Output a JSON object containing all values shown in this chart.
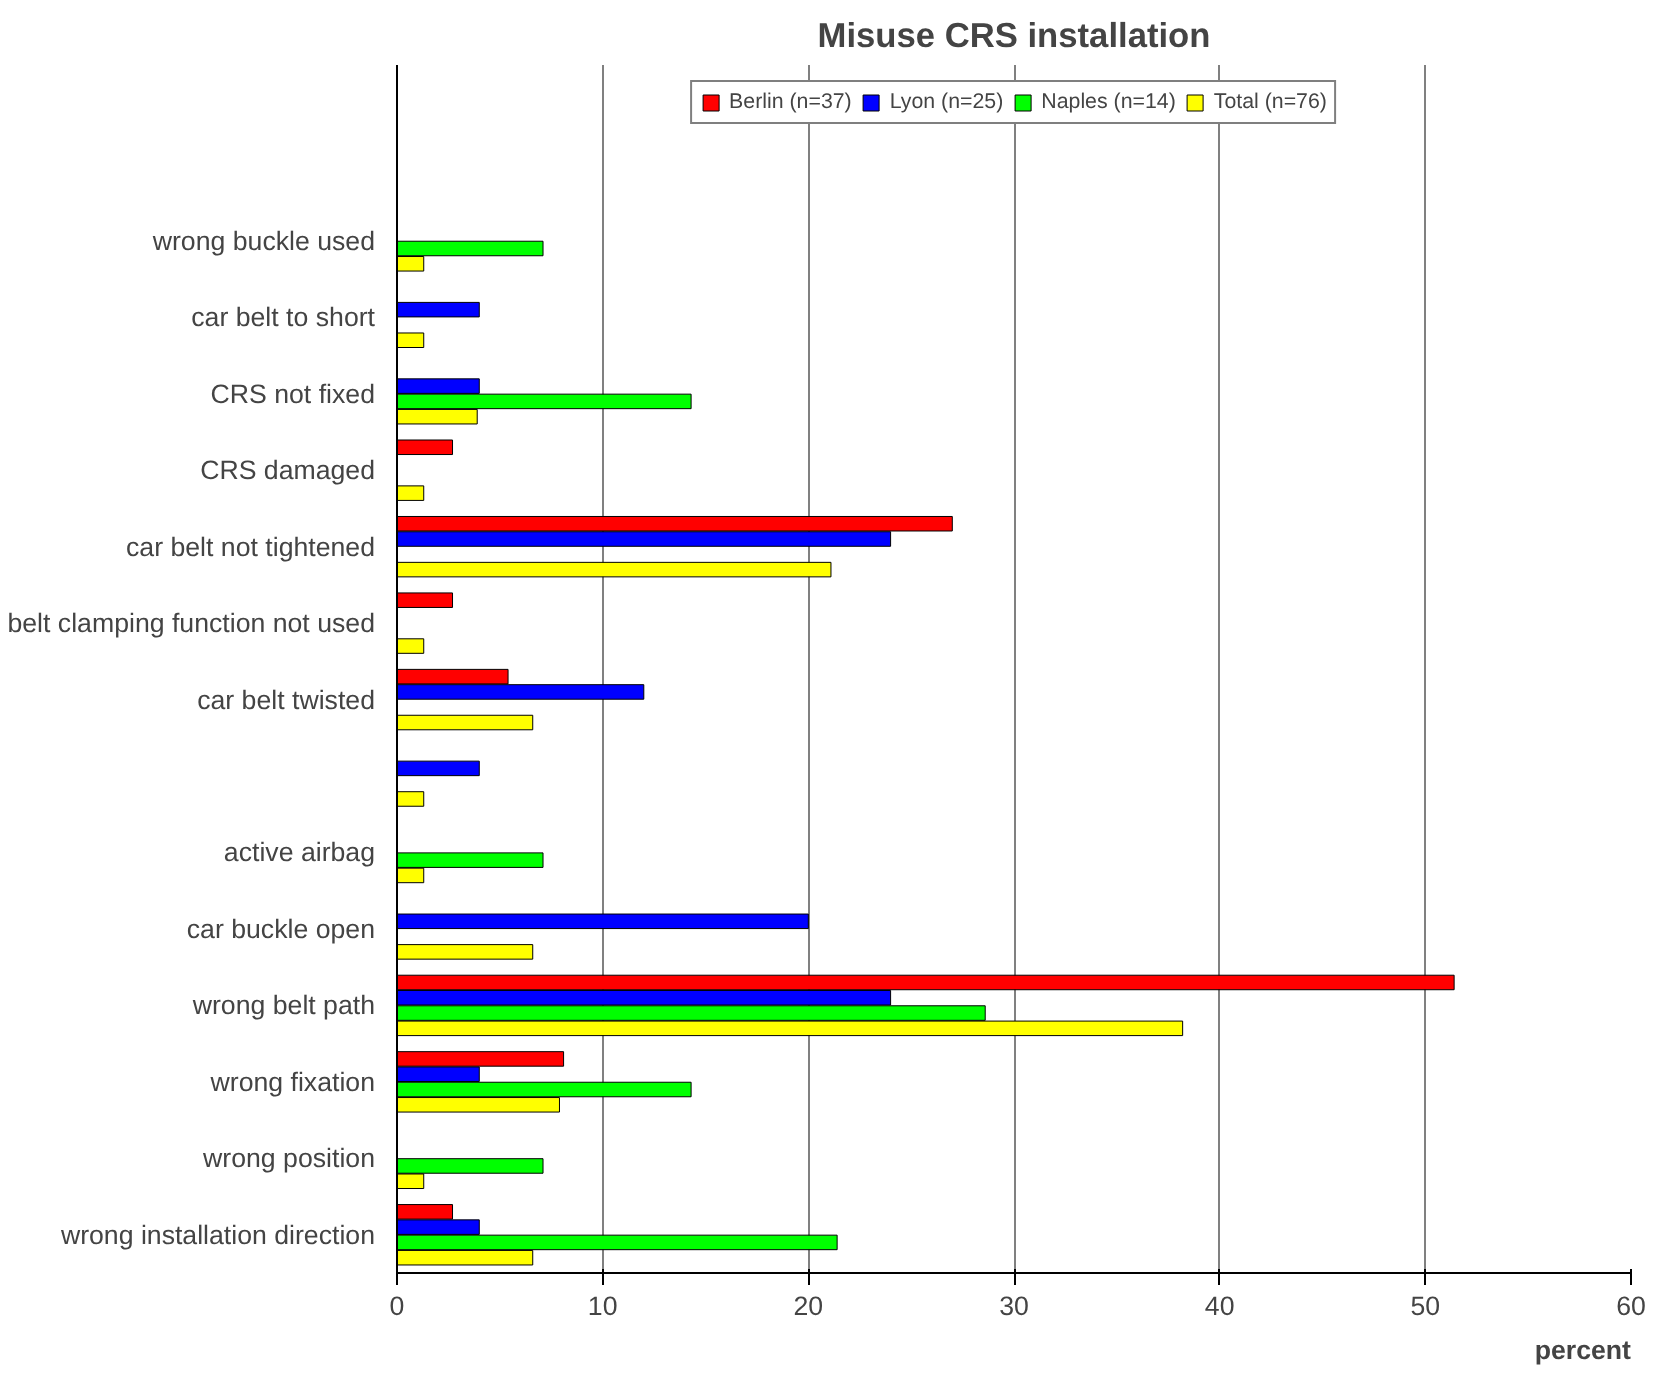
{
  "chart_data": {
    "type": "bar",
    "orientation": "horizontal",
    "title": "Misuse CRS installation",
    "xlabel": "percent",
    "categories": [
      "wrong buckle used",
      "car belt to short",
      "CRS not fixed",
      "CRS damaged",
      "car belt not tightened",
      "belt clamping function not used",
      "car belt twisted",
      null,
      "active airbag",
      "car buckle open",
      "wrong belt path",
      "wrong fixation",
      "wrong position",
      "wrong installation direction"
    ],
    "series": [
      {
        "name": "Berlin (n=37)",
        "color": "#ff0000",
        "values": [
          null,
          null,
          null,
          2.7,
          27.0,
          2.7,
          5.4,
          null,
          null,
          null,
          51.4,
          8.1,
          null,
          2.7
        ]
      },
      {
        "name": "Lyon (n=25)",
        "color": "#0000ff",
        "values": [
          null,
          4,
          4,
          null,
          24,
          null,
          12,
          4,
          null,
          20,
          24,
          4,
          null,
          4
        ]
      },
      {
        "name": "Naples (n=14)",
        "color": "#00ff00",
        "values": [
          7.1,
          null,
          14.3,
          null,
          null,
          null,
          null,
          null,
          7.1,
          null,
          28.6,
          14.3,
          7.1,
          21.4
        ]
      },
      {
        "name": "Total (n=76)",
        "color": "#ffff00",
        "values": [
          1.3,
          1.3,
          3.9,
          1.3,
          21.1,
          1.3,
          6.6,
          1.3,
          1.3,
          6.6,
          38.2,
          7.9,
          1.3,
          6.6
        ]
      }
    ],
    "xlim": [
      0,
      60
    ],
    "xticks": [
      0,
      10,
      20,
      30,
      40,
      50,
      60
    ],
    "grid": "x",
    "legend": "top"
  }
}
